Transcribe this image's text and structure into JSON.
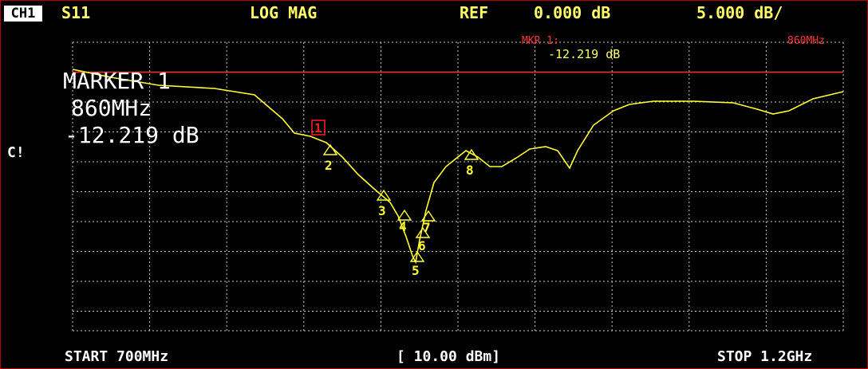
{
  "header": {
    "channel": "CH1",
    "parameter": "S11",
    "format": "LOG MAG",
    "ref_label": "REF",
    "ref_value": "0.000 dB",
    "scale": "5.000 dB/"
  },
  "side_label": "C!",
  "marker_readout": {
    "mkr_label": "MKR 1:",
    "mkr_value": "-12.219 dB",
    "mkr_freq": "860MHz"
  },
  "marker_box": {
    "title": "MARKER 1",
    "freq": "860MHz",
    "value": "-12.219 dB"
  },
  "markers": [
    {
      "id": "1",
      "label": "1"
    },
    {
      "id": "2",
      "label": "2"
    },
    {
      "id": "3",
      "label": "3"
    },
    {
      "id": "4",
      "label": "4"
    },
    {
      "id": "5",
      "label": "5"
    },
    {
      "id": "6",
      "label": "6"
    },
    {
      "id": "7",
      "label": "7"
    },
    {
      "id": "8",
      "label": "8"
    }
  ],
  "footer": {
    "start": "START 700MHz",
    "power": "[ 10.00 dBm]",
    "stop": "STOP 1.2GHz"
  },
  "colors": {
    "header_text": "#ffff66",
    "trace": "#ffff33",
    "grid": "#c8c8c8",
    "ref_line": "#ff3333",
    "marker_active": "#ff2020",
    "background": "#000000"
  }
}
